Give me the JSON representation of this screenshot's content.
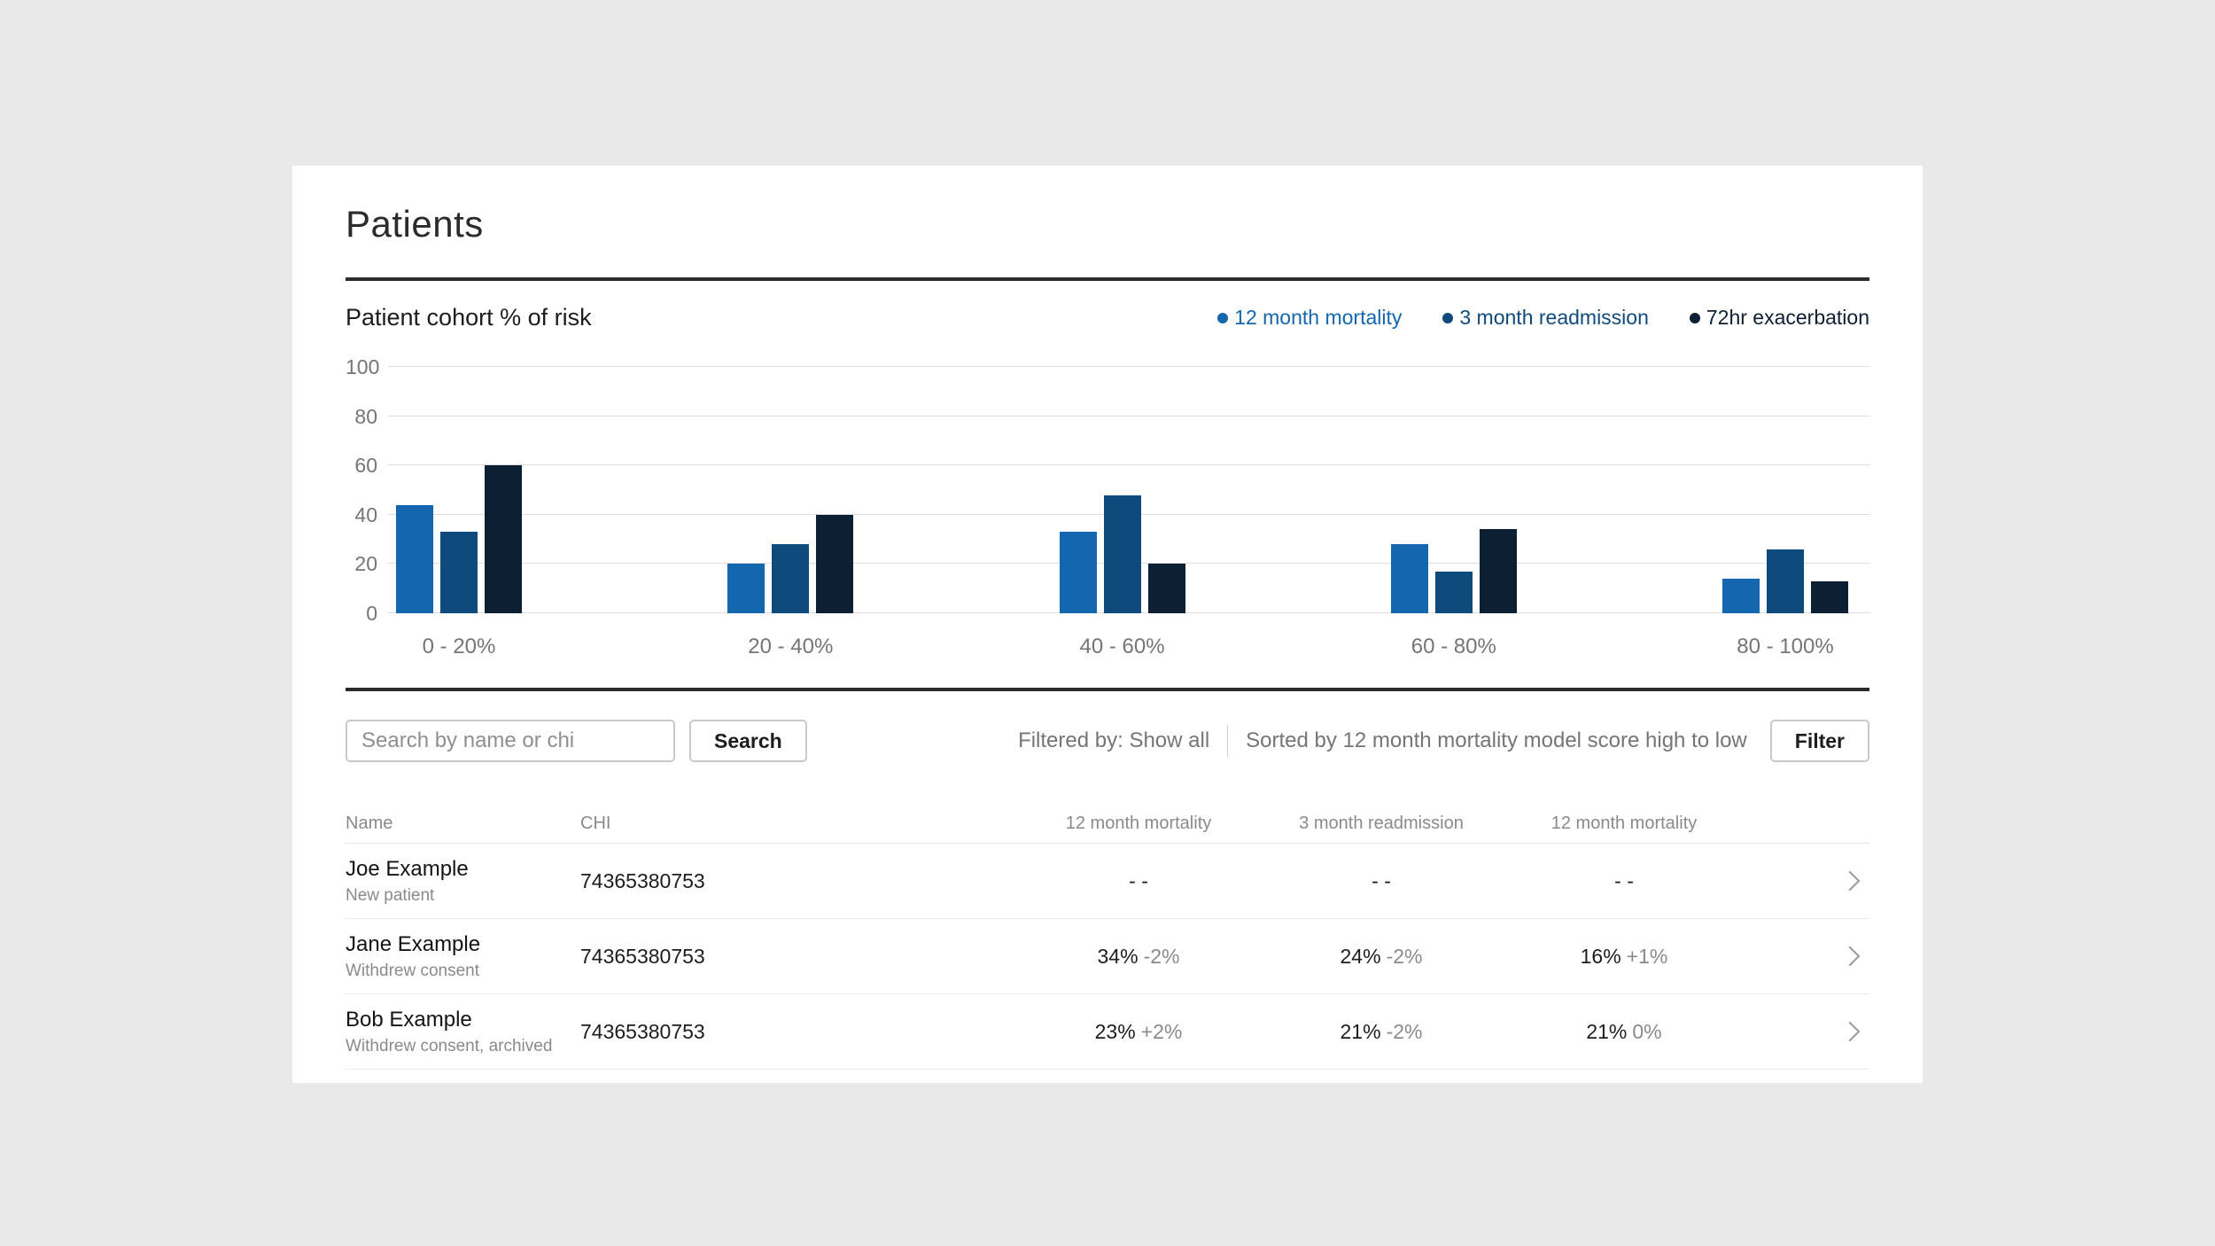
{
  "page": {
    "title": "Patients"
  },
  "colors": {
    "background": "#e9e9e9",
    "card": "#ffffff",
    "text_primary": "#1d1d1d",
    "text_muted": "#8a8a8a",
    "rule": "#2b2b2b"
  },
  "chart_data": {
    "type": "bar",
    "title": "Patient cohort % of risk",
    "categories": [
      "0 - 20%",
      "20 - 40%",
      "40 - 60%",
      "60 - 80%",
      "80 - 100%"
    ],
    "series": [
      {
        "name": "12 month mortality",
        "color": "#1467af",
        "values": [
          44,
          20,
          33,
          28,
          14
        ]
      },
      {
        "name": "3 month readmission",
        "color": "#0f4a7d",
        "values": [
          33,
          28,
          48,
          17,
          26
        ]
      },
      {
        "name": "72hr exacerbation",
        "color": "#0d2033",
        "values": [
          60,
          40,
          20,
          34,
          13
        ]
      }
    ],
    "ylim": [
      0,
      100
    ],
    "yticks": [
      0,
      20,
      40,
      60,
      80,
      100
    ],
    "grid": true,
    "legend_position": "top-right"
  },
  "controls": {
    "search_placeholder": "Search by name or chi",
    "search_button": "Search",
    "filtered_by": "Filtered by: Show all",
    "sorted_by": "Sorted by 12 month mortality model score high to low",
    "filter_button": "Filter"
  },
  "table": {
    "headers": [
      "Name",
      "CHI",
      "12 month mortality",
      "3 month readmission",
      "12 month mortality"
    ],
    "rows": [
      {
        "name": "Joe Example",
        "status": "New patient",
        "chi": "74365380753",
        "values": [
          {
            "main": "- -",
            "delta": ""
          },
          {
            "main": "- -",
            "delta": ""
          },
          {
            "main": "- -",
            "delta": ""
          }
        ]
      },
      {
        "name": "Jane Example",
        "status": "Withdrew consent",
        "chi": "74365380753",
        "values": [
          {
            "main": "34%",
            "delta": "-2%"
          },
          {
            "main": "24%",
            "delta": "-2%"
          },
          {
            "main": "16%",
            "delta": "+1%"
          }
        ]
      },
      {
        "name": "Bob Example",
        "status": "Withdrew consent, archived",
        "chi": "74365380753",
        "values": [
          {
            "main": "23%",
            "delta": "+2%"
          },
          {
            "main": "21%",
            "delta": "-2%"
          },
          {
            "main": "21%",
            "delta": "0%"
          }
        ]
      }
    ]
  }
}
